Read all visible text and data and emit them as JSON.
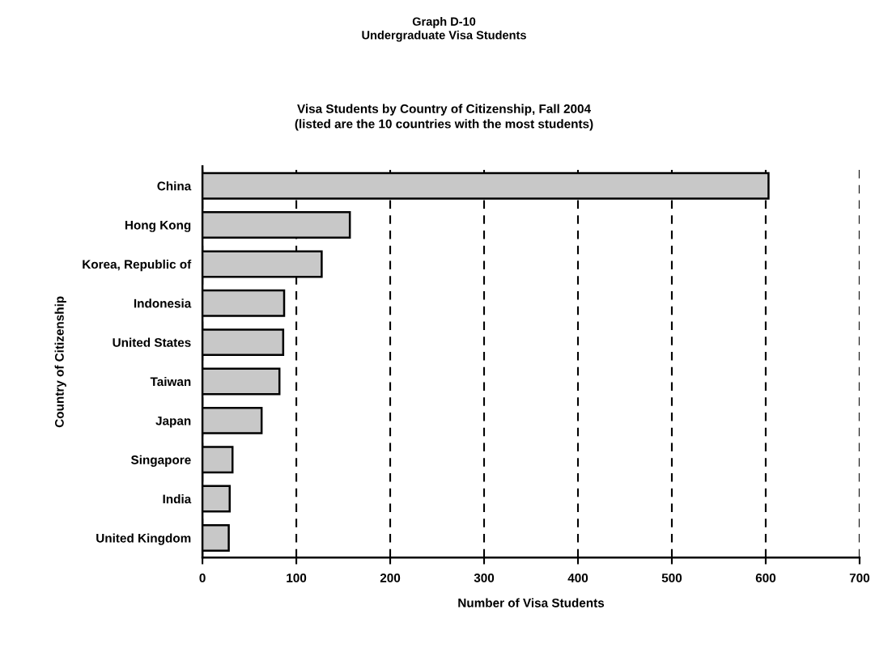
{
  "chart_data": {
    "type": "bar",
    "orientation": "horizontal",
    "title": "Graph D-10\nUndergraduate Visa Students",
    "subtitle": "Visa Students by Country of Citizenship, Fall 2004\n(listed are the 10 countries with the most students)",
    "xlabel": "Number of Visa Students",
    "ylabel": "Country of Citizenship",
    "categories": [
      "China",
      "Hong Kong",
      "Korea, Republic of",
      "Indonesia",
      "United States",
      "Taiwan",
      "Japan",
      "Singapore",
      "India",
      "United Kingdom"
    ],
    "values": [
      603,
      157,
      127,
      87,
      86,
      82,
      63,
      32,
      29,
      28
    ],
    "color": "#c8c8c8",
    "xlim": [
      0,
      700
    ],
    "xticks": [
      0,
      100,
      200,
      300,
      400,
      500,
      600,
      700
    ],
    "grid": "x",
    "line_style": "dashed"
  }
}
